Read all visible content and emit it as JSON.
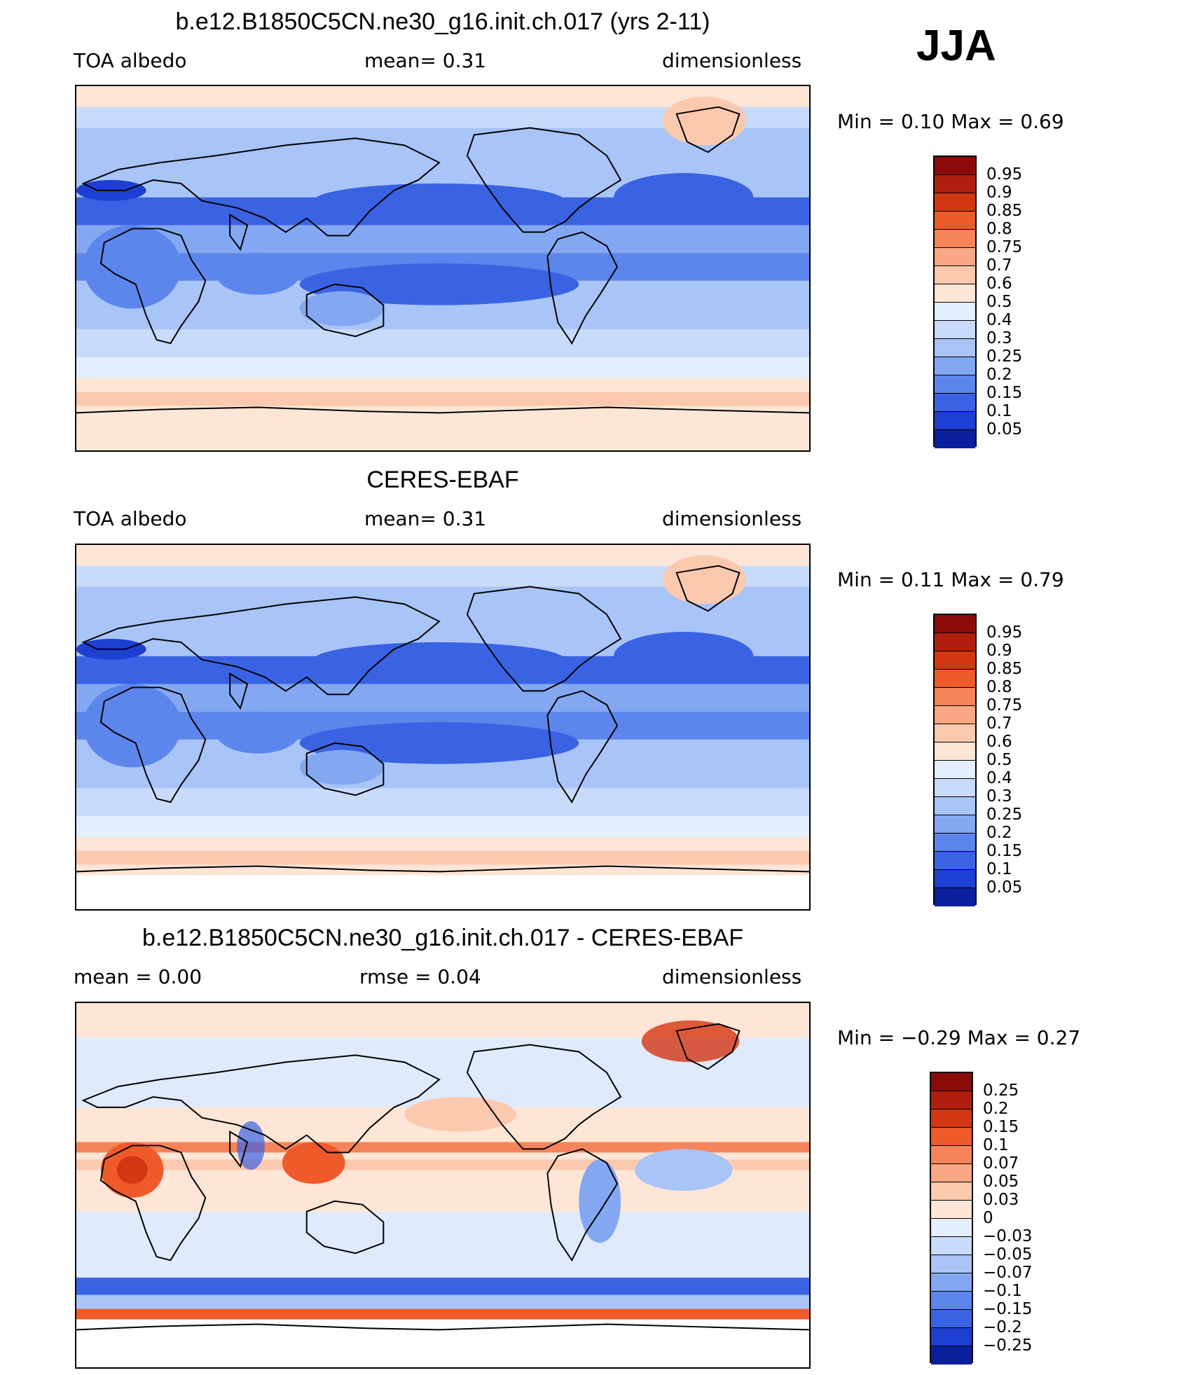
{
  "season": "JJA",
  "panels": [
    {
      "title": "b.e12.B1850C5CN.ne30_g16.init.ch.017 (yrs 2-11)",
      "left": "TOA  albedo",
      "center": "mean=     0.31",
      "right": "dimensionless",
      "minmax": "Min  =      0.10  Max  =      0.69",
      "colorbar": {
        "labels": [
          "0.95",
          "0.9",
          "0.85",
          "0.8",
          "0.75",
          "0.7",
          "0.6",
          "0.5",
          "0.4",
          "0.3",
          "0.25",
          "0.2",
          "0.15",
          "0.1",
          "0.05"
        ],
        "colors": [
          "#8b0a0a",
          "#b01e0e",
          "#d33612",
          "#ef5a2a",
          "#f6845a",
          "#f9a784",
          "#fbc9ae",
          "#fde6d6",
          "#e4effd",
          "#c8dbfa",
          "#a9c4f6",
          "#83a8f1",
          "#5c86ec",
          "#3a63e3",
          "#1d3fd2",
          "#0a1f9c"
        ],
        "type": "seq"
      }
    },
    {
      "title": "CERES-EBAF",
      "left": "TOA  albedo",
      "center": "mean=     0.31",
      "right": "dimensionless",
      "minmax": "Min  =      0.11  Max  =      0.79",
      "colorbar": {
        "labels": [
          "0.95",
          "0.9",
          "0.85",
          "0.8",
          "0.75",
          "0.7",
          "0.6",
          "0.5",
          "0.4",
          "0.3",
          "0.25",
          "0.2",
          "0.15",
          "0.1",
          "0.05"
        ],
        "colors": [
          "#8b0a0a",
          "#b01e0e",
          "#d33612",
          "#ef5a2a",
          "#f6845a",
          "#f9a784",
          "#fbc9ae",
          "#fde6d6",
          "#e4effd",
          "#c8dbfa",
          "#a9c4f6",
          "#83a8f1",
          "#5c86ec",
          "#3a63e3",
          "#1d3fd2",
          "#0a1f9c"
        ],
        "type": "seq"
      }
    },
    {
      "title": "b.e12.B1850C5CN.ne30_g16.init.ch.017 - CERES-EBAF",
      "left": "mean  =      0.00",
      "center": "rmse  =      0.04",
      "right": "dimensionless",
      "minmax": "Min  =    −0.29  Max  =      0.27",
      "colorbar": {
        "labels": [
          "0.25",
          "0.2",
          "0.15",
          "0.1",
          "0.07",
          "0.05",
          "0.03",
          "0",
          "−0.03",
          "−0.05",
          "−0.07",
          "−0.1",
          "−0.15",
          "−0.2",
          "−0.25"
        ],
        "colors": [
          "#8b0a0a",
          "#b01e0e",
          "#d33612",
          "#ef5a2a",
          "#f6845a",
          "#f9a784",
          "#fbc9ae",
          "#fde6d6",
          "#e4effd",
          "#c8dbfa",
          "#a9c4f6",
          "#83a8f1",
          "#5c86ec",
          "#3a63e3",
          "#1d3fd2",
          "#0a1f9c"
        ],
        "type": "diff"
      }
    }
  ]
}
